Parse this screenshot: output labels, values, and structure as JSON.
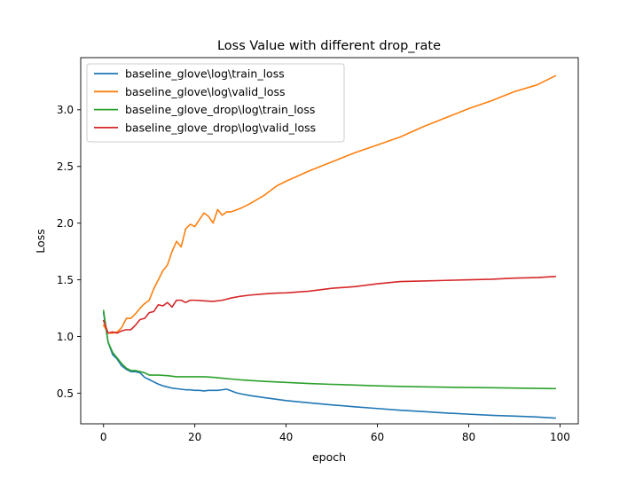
{
  "chart_data": {
    "type": "line",
    "title": "Loss Value with different drop_rate",
    "xlabel": "epoch",
    "ylabel": "Loss",
    "xlim": [
      -5,
      104
    ],
    "ylim": [
      0.23,
      3.46
    ],
    "xticks": [
      0,
      20,
      40,
      60,
      80,
      100
    ],
    "yticks": [
      0.5,
      1.0,
      1.5,
      2.0,
      2.5,
      3.0
    ],
    "xtick_labels": [
      "0",
      "20",
      "40",
      "60",
      "80",
      "100"
    ],
    "ytick_labels": [
      "0.5",
      "1.0",
      "1.5",
      "2.0",
      "2.5",
      "3.0"
    ],
    "grid": false,
    "legend_position": "top-left",
    "series": [
      {
        "name": "baseline_glove\\log\\train_loss",
        "color": "#1f77b4",
        "points": [
          [
            0,
            1.21
          ],
          [
            1,
            0.95
          ],
          [
            2,
            0.84
          ],
          [
            3,
            0.8
          ],
          [
            4,
            0.74
          ],
          [
            5,
            0.71
          ],
          [
            6,
            0.69
          ],
          [
            7,
            0.69
          ],
          [
            8,
            0.68
          ],
          [
            9,
            0.64
          ],
          [
            10,
            0.62
          ],
          [
            11,
            0.6
          ],
          [
            12,
            0.58
          ],
          [
            13,
            0.565
          ],
          [
            14,
            0.555
          ],
          [
            15,
            0.545
          ],
          [
            16,
            0.54
          ],
          [
            17,
            0.535
          ],
          [
            18,
            0.53
          ],
          [
            19,
            0.53
          ],
          [
            20,
            0.525
          ],
          [
            21,
            0.525
          ],
          [
            22,
            0.52
          ],
          [
            23,
            0.525
          ],
          [
            24,
            0.525
          ],
          [
            25,
            0.525
          ],
          [
            26,
            0.53
          ],
          [
            27,
            0.535
          ],
          [
            28,
            0.52
          ],
          [
            29,
            0.505
          ],
          [
            30,
            0.495
          ],
          [
            32,
            0.48
          ],
          [
            35,
            0.462
          ],
          [
            40,
            0.435
          ],
          [
            45,
            0.415
          ],
          [
            50,
            0.397
          ],
          [
            55,
            0.38
          ],
          [
            60,
            0.365
          ],
          [
            65,
            0.35
          ],
          [
            70,
            0.338
          ],
          [
            75,
            0.325
          ],
          [
            80,
            0.315
          ],
          [
            85,
            0.305
          ],
          [
            90,
            0.298
          ],
          [
            95,
            0.29
          ],
          [
            99,
            0.28
          ]
        ]
      },
      {
        "name": "baseline_glove\\log\\valid_loss",
        "color": "#ff7f0e",
        "points": [
          [
            0,
            1.1
          ],
          [
            1,
            1.03
          ],
          [
            2,
            1.03
          ],
          [
            3,
            1.04
          ],
          [
            4,
            1.08
          ],
          [
            5,
            1.16
          ],
          [
            6,
            1.16
          ],
          [
            7,
            1.2
          ],
          [
            8,
            1.25
          ],
          [
            9,
            1.29
          ],
          [
            10,
            1.32
          ],
          [
            11,
            1.42
          ],
          [
            12,
            1.5
          ],
          [
            13,
            1.58
          ],
          [
            14,
            1.63
          ],
          [
            15,
            1.75
          ],
          [
            16,
            1.84
          ],
          [
            17,
            1.79
          ],
          [
            18,
            1.95
          ],
          [
            19,
            1.99
          ],
          [
            20,
            1.97
          ],
          [
            21,
            2.03
          ],
          [
            22,
            2.09
          ],
          [
            23,
            2.06
          ],
          [
            24,
            2.0
          ],
          [
            25,
            2.12
          ],
          [
            26,
            2.07
          ],
          [
            27,
            2.1
          ],
          [
            28,
            2.1
          ],
          [
            30,
            2.13
          ],
          [
            32,
            2.17
          ],
          [
            35,
            2.24
          ],
          [
            38,
            2.33
          ],
          [
            40,
            2.37
          ],
          [
            45,
            2.46
          ],
          [
            50,
            2.54
          ],
          [
            55,
            2.62
          ],
          [
            60,
            2.69
          ],
          [
            65,
            2.76
          ],
          [
            70,
            2.85
          ],
          [
            75,
            2.93
          ],
          [
            80,
            3.01
          ],
          [
            85,
            3.08
          ],
          [
            90,
            3.16
          ],
          [
            95,
            3.22
          ],
          [
            99,
            3.3
          ]
        ]
      },
      {
        "name": "baseline_glove_drop\\log\\train_loss",
        "color": "#2ca02c",
        "points": [
          [
            0,
            1.23
          ],
          [
            1,
            0.95
          ],
          [
            2,
            0.86
          ],
          [
            3,
            0.81
          ],
          [
            4,
            0.76
          ],
          [
            5,
            0.72
          ],
          [
            6,
            0.7
          ],
          [
            7,
            0.7
          ],
          [
            8,
            0.69
          ],
          [
            9,
            0.68
          ],
          [
            10,
            0.66
          ],
          [
            12,
            0.66
          ],
          [
            14,
            0.655
          ],
          [
            16,
            0.645
          ],
          [
            18,
            0.645
          ],
          [
            20,
            0.645
          ],
          [
            22,
            0.645
          ],
          [
            24,
            0.64
          ],
          [
            26,
            0.632
          ],
          [
            28,
            0.625
          ],
          [
            30,
            0.618
          ],
          [
            35,
            0.605
          ],
          [
            40,
            0.595
          ],
          [
            45,
            0.585
          ],
          [
            50,
            0.578
          ],
          [
            55,
            0.572
          ],
          [
            60,
            0.565
          ],
          [
            65,
            0.56
          ],
          [
            70,
            0.556
          ],
          [
            75,
            0.553
          ],
          [
            80,
            0.55
          ],
          [
            85,
            0.548
          ],
          [
            90,
            0.545
          ],
          [
            95,
            0.542
          ],
          [
            99,
            0.54
          ]
        ]
      },
      {
        "name": "baseline_glove_drop\\log\\valid_loss",
        "color": "#d62728",
        "points": [
          [
            0,
            1.14
          ],
          [
            1,
            1.03
          ],
          [
            2,
            1.04
          ],
          [
            3,
            1.03
          ],
          [
            4,
            1.05
          ],
          [
            5,
            1.06
          ],
          [
            6,
            1.06
          ],
          [
            7,
            1.1
          ],
          [
            8,
            1.15
          ],
          [
            9,
            1.16
          ],
          [
            10,
            1.21
          ],
          [
            11,
            1.22
          ],
          [
            12,
            1.28
          ],
          [
            13,
            1.27
          ],
          [
            14,
            1.3
          ],
          [
            15,
            1.26
          ],
          [
            16,
            1.32
          ],
          [
            17,
            1.32
          ],
          [
            18,
            1.3
          ],
          [
            19,
            1.32
          ],
          [
            20,
            1.32
          ],
          [
            22,
            1.315
          ],
          [
            24,
            1.31
          ],
          [
            26,
            1.32
          ],
          [
            28,
            1.34
          ],
          [
            30,
            1.355
          ],
          [
            32,
            1.365
          ],
          [
            35,
            1.375
          ],
          [
            38,
            1.383
          ],
          [
            40,
            1.385
          ],
          [
            45,
            1.4
          ],
          [
            50,
            1.425
          ],
          [
            55,
            1.44
          ],
          [
            60,
            1.465
          ],
          [
            65,
            1.485
          ],
          [
            70,
            1.49
          ],
          [
            75,
            1.495
          ],
          [
            80,
            1.5
          ],
          [
            85,
            1.505
          ],
          [
            90,
            1.515
          ],
          [
            95,
            1.52
          ],
          [
            99,
            1.53
          ]
        ]
      }
    ]
  }
}
